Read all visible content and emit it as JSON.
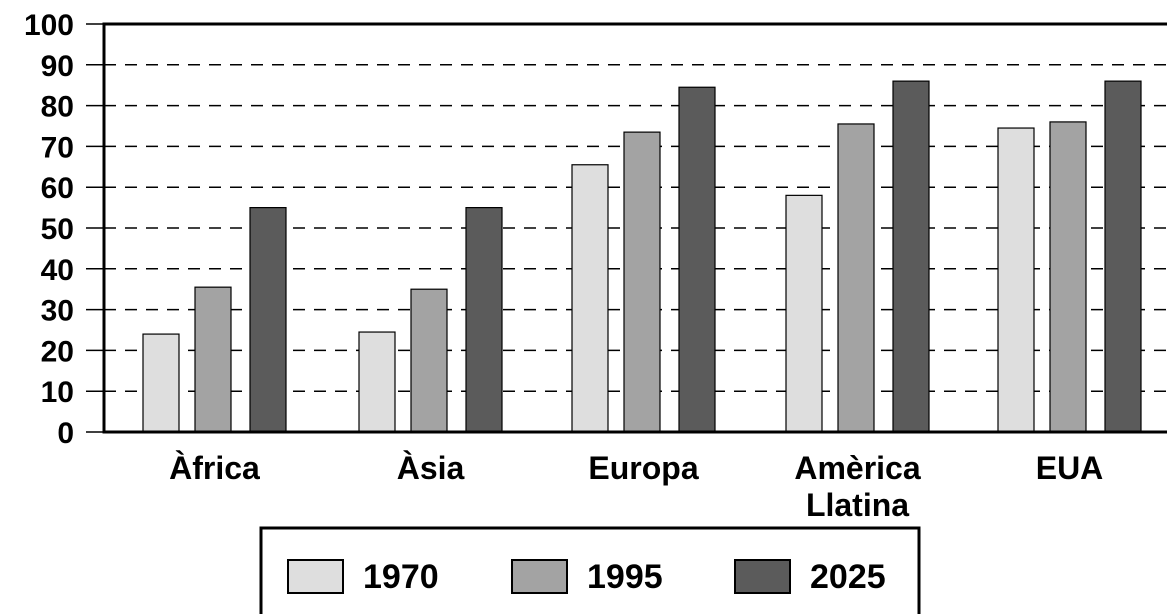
{
  "chart_data": {
    "type": "bar",
    "title": "",
    "xlabel": "",
    "ylabel": "",
    "categories": [
      [
        "Àfrica"
      ],
      [
        "Àsia"
      ],
      [
        "Europa"
      ],
      [
        "Amèrica",
        "Llatina"
      ],
      [
        "EUA"
      ]
    ],
    "series": [
      {
        "name": "1970",
        "color": "#dedede",
        "values": [
          24,
          24.5,
          65.5,
          58,
          74.5
        ]
      },
      {
        "name": "1995",
        "color": "#a3a3a3",
        "values": [
          35.5,
          35,
          73.5,
          75.5,
          76
        ]
      },
      {
        "name": "2025",
        "color": "#5b5b5b",
        "values": [
          55,
          55,
          84.5,
          86,
          86
        ]
      }
    ],
    "ylim": [
      0,
      100
    ],
    "yticks": [
      "0",
      "10",
      "20",
      "30",
      "40",
      "50",
      "60",
      "70",
      "80",
      "90",
      "100"
    ],
    "grid": "dashed horizontal",
    "legend_position": "bottom"
  }
}
